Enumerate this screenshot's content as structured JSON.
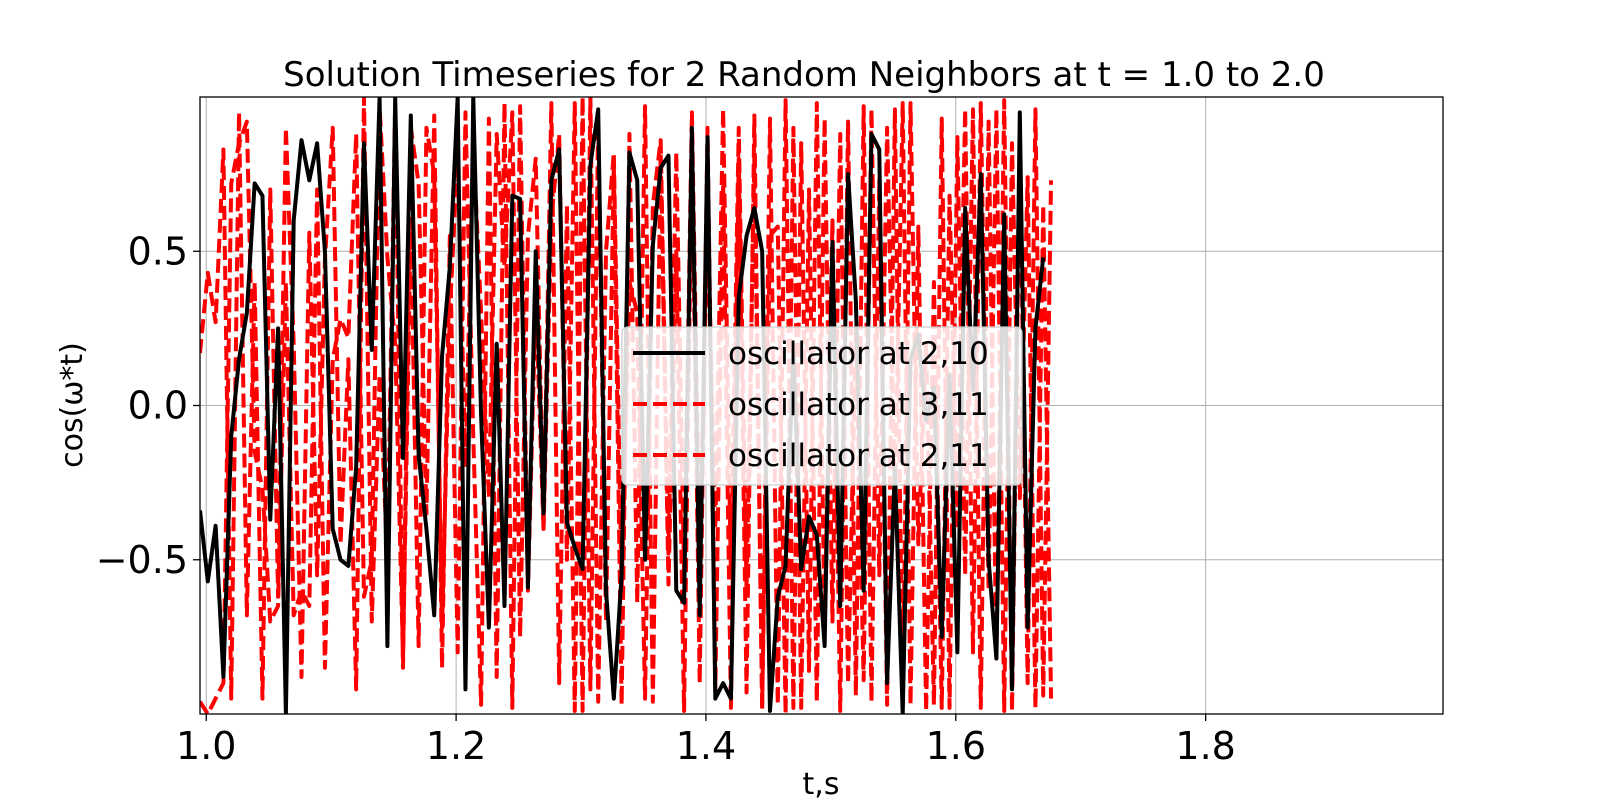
{
  "chart_data": {
    "type": "line",
    "title": "Solution Timeseries for 2 Random Neighbors at t = 1.0 to 2.0",
    "xlabel": "t,s",
    "ylabel": "cos(ω*t)",
    "xlim": [
      0.995,
      1.99
    ],
    "ylim": [
      -1.0,
      1.0
    ],
    "x_ticks": [
      1.0,
      1.2,
      1.4,
      1.6,
      1.8
    ],
    "x_tick_labels": [
      "1.0",
      "1.2",
      "1.4",
      "1.6",
      "1.8"
    ],
    "y_ticks": [
      -0.5,
      0.0,
      0.5
    ],
    "y_tick_labels": [
      "−0.5",
      "0.0",
      "0.5"
    ],
    "grid": true,
    "legend_position": "center",
    "x_start": 0.995,
    "x_step": 0.00625,
    "series": [
      {
        "name": "oscillator at 2,10",
        "color": "#000000",
        "style": "solid",
        "values": [
          -0.34,
          -0.57,
          -0.39,
          -0.88,
          -0.1,
          0.15,
          0.3,
          0.72,
          0.68,
          -0.37,
          0.25,
          -1.0,
          0.6,
          0.86,
          0.73,
          0.85,
          0.5,
          -0.4,
          -0.5,
          -0.52,
          -0.2,
          0.85,
          0.18,
          1.0,
          -0.78,
          1.0,
          -0.17,
          0.94,
          -0.16,
          -0.4,
          -0.68,
          0.16,
          0.45,
          1.0,
          -0.92,
          1.0,
          -0.03,
          -0.72,
          0.2,
          -0.65,
          0.68,
          0.67,
          -0.59,
          0.5,
          -0.35,
          0.73,
          0.83,
          -0.38,
          -0.46,
          -0.53,
          0.78,
          0.96,
          -0.6,
          -0.95,
          -0.55,
          0.82,
          0.73,
          -0.5,
          0.52,
          0.77,
          0.81,
          -0.6,
          -0.64,
          0.9,
          -0.68,
          0.87,
          -0.95,
          -0.9,
          -0.95,
          0.35,
          0.55,
          0.64,
          0.5,
          -0.99,
          -0.62,
          -0.52,
          0.18,
          -0.53,
          -0.36,
          -0.42,
          -0.78,
          0.53,
          -0.65,
          0.75,
          0.34,
          -0.6,
          0.88,
          0.83,
          -0.9,
          -0.2,
          -1.0,
          0.15,
          0.23,
          -0.05,
          0.06,
          -0.75,
          0.1,
          -0.8,
          0.64,
          0.05,
          0.75,
          -0.5,
          -0.82,
          0.62,
          -0.92,
          0.95,
          -0.72,
          0.25,
          0.48
        ]
      },
      {
        "name": "oscillator at 3,11",
        "color": "#ff0000",
        "style": "dashed",
        "values": [
          0.17,
          0.43,
          0.27,
          0.83,
          -0.95,
          0.95,
          -0.68,
          0.4,
          -0.95,
          0.7,
          -0.62,
          0.9,
          0.2,
          -0.88,
          0.56,
          -0.55,
          0.47,
          0.9,
          -0.45,
          0.15,
          -0.92,
          1.0,
          -0.7,
          0.1,
          -0.5,
          0.98,
          -0.85,
          0.9,
          0.72,
          -0.35,
          0.94,
          -0.85,
          0.55,
          -0.8,
          0.95,
          -0.1,
          -0.97,
          0.93,
          -0.88,
          0.98,
          -0.98,
          0.97,
          -0.6,
          0.35,
          -0.4,
          0.98,
          -0.9,
          0.65,
          -0.99,
          1.0,
          -0.92,
          0.92,
          -0.7,
          0.78,
          -0.97,
          0.88,
          -0.64,
          0.97,
          -0.96,
          0.82,
          -0.58,
          0.5,
          -0.99,
          0.86,
          -0.9,
          0.9,
          -0.92,
          0.72,
          -0.98,
          0.8,
          -0.93,
          0.94,
          -0.99,
          0.93,
          -0.97,
          0.99,
          -0.98,
          0.85,
          -0.86,
          0.98,
          -0.72,
          0.6,
          -0.99,
          0.92,
          -0.94,
          0.97,
          -0.96,
          0.73,
          -0.97,
          0.96,
          -0.96,
          0.98,
          -0.45,
          0.2,
          -0.97,
          0.93,
          -0.98,
          0.87,
          -0.55,
          0.96,
          -0.98,
          0.92,
          -0.82,
          0.99,
          -0.99,
          0.86,
          -0.9,
          0.96,
          -0.94,
          0.73
        ]
      },
      {
        "name": "oscillator at 2,11",
        "color": "#ff0000",
        "style": "dashed",
        "values": [
          -0.96,
          -1.0,
          -0.95,
          -0.9,
          0.72,
          0.85,
          0.92,
          -0.15,
          -0.27,
          -0.7,
          -0.65,
          0.4,
          -0.68,
          -0.6,
          -0.65,
          0.7,
          -0.85,
          0.15,
          0.28,
          0.22,
          0.88,
          -0.62,
          -0.5,
          0.97,
          0.48,
          0.2,
          -0.82,
          0.6,
          -0.78,
          0.9,
          0.75,
          -0.72,
          0.3,
          0.82,
          -0.2,
          0.85,
          0.3,
          -0.3,
          0.88,
          0.45,
          0.95,
          -0.75,
          0.55,
          0.8,
          -0.4,
          0.6,
          0.88,
          -0.5,
          0.98,
          -0.99,
          1.0,
          -0.96,
          0.5,
          0.82,
          -0.6,
          0.4,
          0.3,
          -0.95,
          0.65,
          0.86,
          -0.48,
          0.82,
          -0.55,
          0.95,
          -0.5,
          0.6,
          -0.4,
          0.96,
          -0.55,
          0.9,
          -0.6,
          0.8,
          -0.97,
          0.55,
          0.58,
          -1.0,
          0.9,
          -0.98,
          0.7,
          -0.96,
          0.93,
          -0.7,
          0.88,
          -0.9,
          0.25,
          -0.89,
          0.96,
          -0.55,
          0.9,
          -0.3,
          0.98,
          -0.97,
          0.58,
          -0.99,
          0.4,
          -0.98,
          0.68,
          -0.4,
          0.96,
          -0.8,
          0.98,
          -0.6,
          0.96,
          -0.99,
          0.85,
          -0.3,
          0.74,
          -0.98,
          0.65,
          -0.95
        ]
      }
    ]
  }
}
